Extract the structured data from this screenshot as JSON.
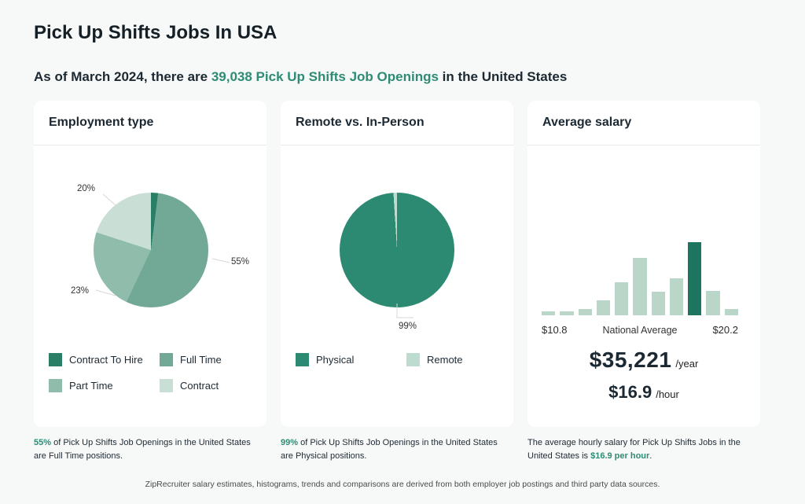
{
  "header": {
    "title": "Pick Up Shifts Jobs In USA",
    "subtitle_prefix": "As of March 2024, there are ",
    "subtitle_link": "39,038 Pick Up Shifts Job Openings",
    "subtitle_suffix": " in the United States"
  },
  "colors": {
    "accent_green": "#2e8b74",
    "page_background": "#f7f8f8",
    "card_background": "#ffffff"
  },
  "cards": [
    {
      "title": "Employment type"
    },
    {
      "title": "Remote vs. In-Person"
    },
    {
      "title": "Average salary"
    }
  ],
  "salary": {
    "yearly_value": "$35,221",
    "yearly_unit": "/year",
    "hourly_value": "$16.9",
    "hourly_unit": "/hour"
  },
  "footnotes": [
    {
      "highlight": "55%",
      "text": " of Pick Up Shifts Job Openings in the United States are Full Time positions."
    },
    {
      "highlight": "99%",
      "text": " of Pick Up Shifts Job Openings in the United States are Physical positions."
    },
    {
      "prefix": "The average hourly salary for Pick Up Shifts Jobs in the United States is ",
      "highlight": "$16.9 per hour",
      "suffix": "."
    }
  ],
  "footer": {
    "disclaimer": "ZipRecruiter salary estimates, histograms, trends and comparisons are derived from both employer job postings and third party data sources."
  },
  "chart_data": [
    {
      "type": "pie",
      "title": "Employment type",
      "start_angle_deg": 0,
      "direction": "clockwise",
      "legend_position": "bottom",
      "slices": [
        {
          "label": "Contract To Hire",
          "value": 2,
          "color": "#2a7e66"
        },
        {
          "label": "Full Time",
          "value": 55,
          "color": "#72a996",
          "callout": "55%"
        },
        {
          "label": "Part Time",
          "value": 23,
          "color": "#8fbcab",
          "callout": "23%"
        },
        {
          "label": "Contract",
          "value": 20,
          "color": "#c9dfd5",
          "callout": "20%"
        }
      ]
    },
    {
      "type": "pie",
      "title": "Remote vs. In-Person",
      "start_angle_deg": 0,
      "direction": "clockwise",
      "legend_position": "bottom",
      "slices": [
        {
          "label": "Physical",
          "value": 99,
          "color": "#2b8a71",
          "callout": "99%"
        },
        {
          "label": "Remote",
          "value": 1,
          "color": "#bedbcf"
        }
      ]
    },
    {
      "type": "bar",
      "title": "Average salary",
      "values": [
        5,
        5,
        9,
        20,
        45,
        78,
        32,
        51,
        100,
        33,
        9
      ],
      "highlight_index": 8,
      "bar_color": "#b9d6c9",
      "highlight_color": "#1d7560",
      "x_left_label": "$10.8",
      "x_center_label": "National Average",
      "x_right_label": "$20.2"
    }
  ]
}
